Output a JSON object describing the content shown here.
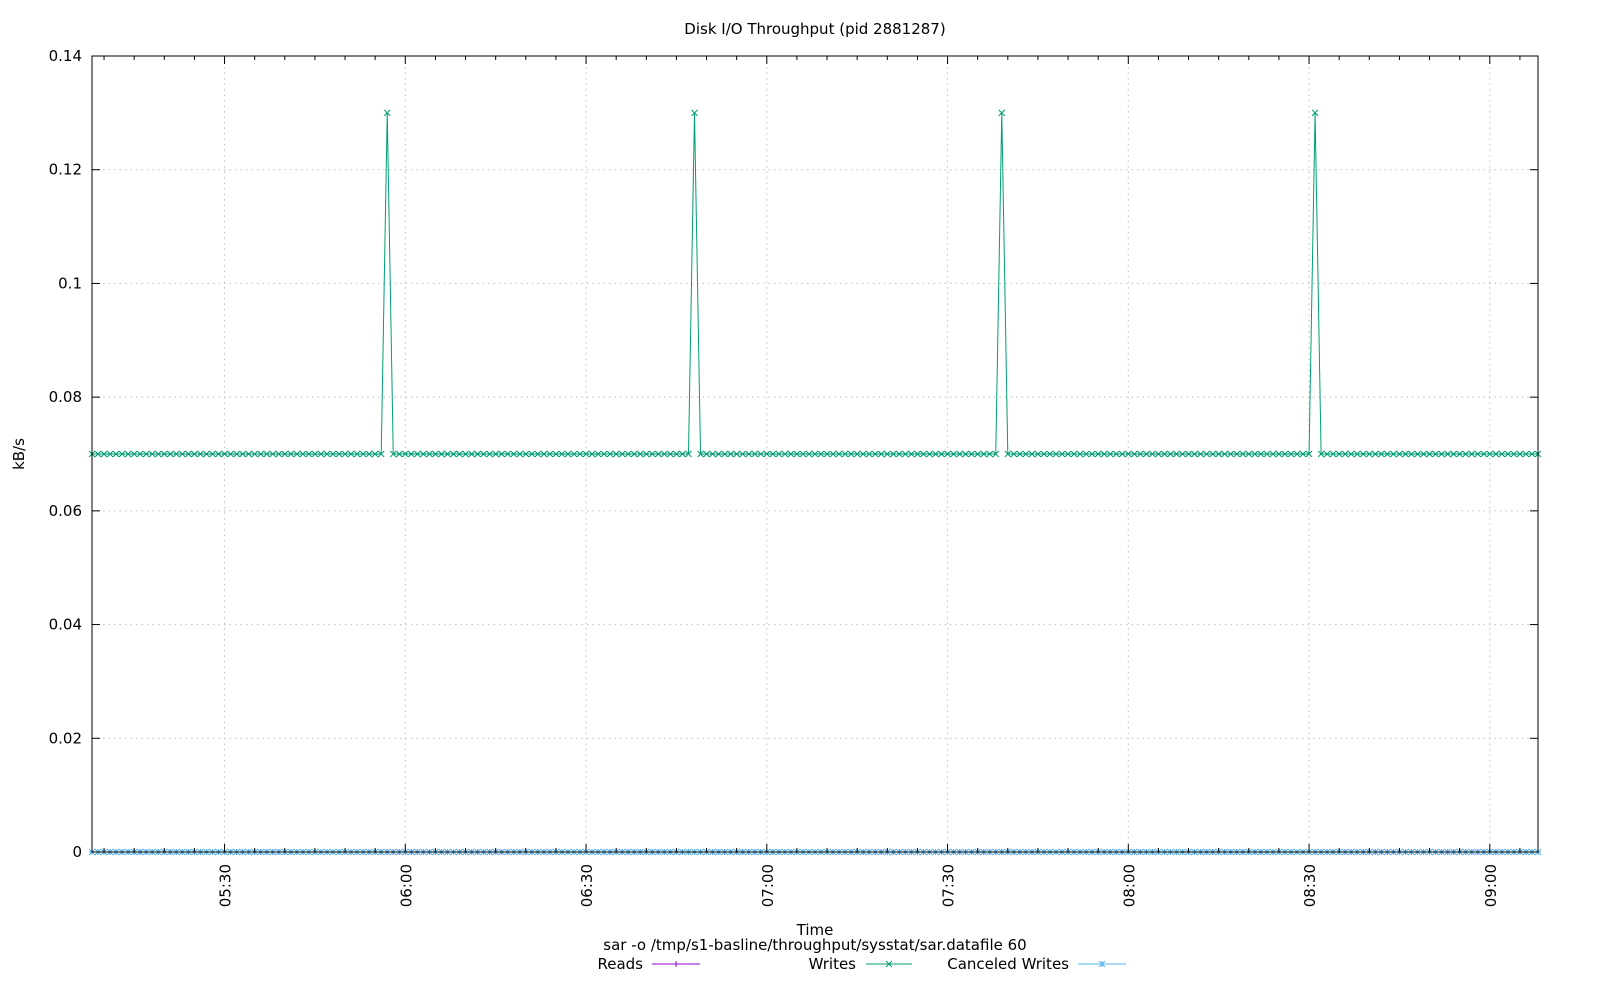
{
  "chart_data": {
    "type": "line",
    "title": "Disk I/O Throughput (pid 2881287)",
    "xlabel": "Time",
    "ylabel": "kB/s",
    "caption": "sar -o /tmp/s1-basline/throughput/sysstat/sar.datafile 60",
    "ylim": [
      0,
      0.14
    ],
    "xlim": [
      "05:08",
      "09:08"
    ],
    "sample_interval_minutes": 1,
    "yticks": [
      "0",
      "0.02",
      "0.04",
      "0.06",
      "0.08",
      "0.1",
      "0.12",
      "0.14"
    ],
    "xticks": [
      "05:30",
      "06:00",
      "06:30",
      "07:00",
      "07:30",
      "08:00",
      "08:30",
      "09:00"
    ],
    "grid": true,
    "legend_position": "bottom",
    "series": [
      {
        "name": "Reads",
        "color": "#9400d3",
        "marker": "plus",
        "baseline": 0,
        "spikes": []
      },
      {
        "name": "Writes",
        "color": "#009e73",
        "marker": "cross",
        "baseline": 0.07,
        "spikes": [
          {
            "time": "05:57",
            "value": 0.13
          },
          {
            "time": "06:48",
            "value": 0.13
          },
          {
            "time": "07:39",
            "value": 0.13
          },
          {
            "time": "08:31",
            "value": 0.13
          }
        ]
      },
      {
        "name": "Canceled Writes",
        "color": "#56b4e9",
        "marker": "star",
        "baseline": 0,
        "spikes": []
      }
    ]
  }
}
